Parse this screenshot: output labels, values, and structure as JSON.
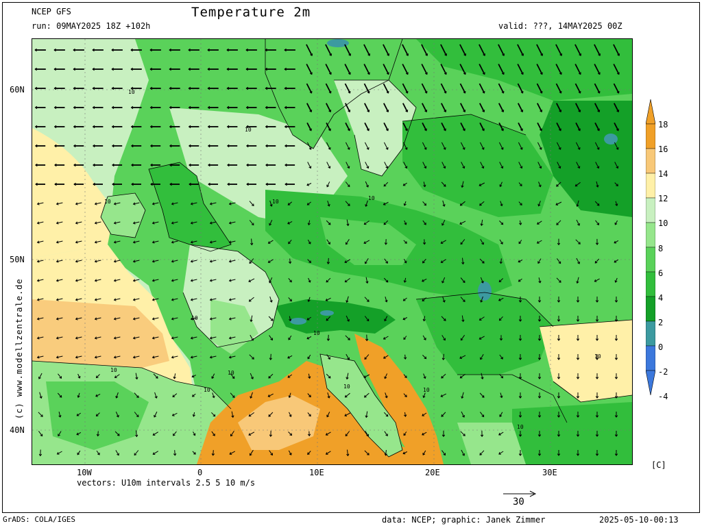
{
  "header": {
    "model": "NCEP GFS",
    "run": "run: 09MAY2025 18Z +102h",
    "title": "Temperature 2m",
    "valid": "valid: ???, 14MAY2025 00Z"
  },
  "map": {
    "lat_labels": [
      "60N",
      "50N",
      "40N"
    ],
    "lon_labels": [
      "10W",
      "0",
      "10E",
      "20E",
      "30E"
    ],
    "contour_label": "10",
    "colors": {
      "orange": "#f0a028",
      "light_orange": "#f8c878",
      "yellow": "#fff0a8",
      "pale_green": "#c8f0c0",
      "light_green": "#96e68c",
      "green": "#5ad25a",
      "mid_green": "#32be3c",
      "dark_green": "#14a028",
      "teal": "#3c9aa0",
      "blue": "#3c78dc"
    }
  },
  "vectors_caption": "vectors: U10m intervals 2.5 5 10 m/s",
  "reference_arrow": {
    "label": "30"
  },
  "colorbar": {
    "labels": [
      "18",
      "16",
      "14",
      "12",
      "10",
      "8",
      "6",
      "4",
      "2",
      "0",
      "-2",
      "-4"
    ],
    "colors": [
      "#f0a028",
      "#f8c878",
      "#fff0a8",
      "#c8f0c0",
      "#96e68c",
      "#5ad25a",
      "#32be3c",
      "#14a028",
      "#3c9aa0",
      "#3c78dc"
    ],
    "unit": "[C]"
  },
  "watermark": "(c) www.modellzentrale.de",
  "footer": {
    "left": "GrADS: COLA/IGES",
    "credit": "data: NCEP; graphic: Janek Zimmer",
    "timestamp": "2025-05-10-00:13"
  }
}
